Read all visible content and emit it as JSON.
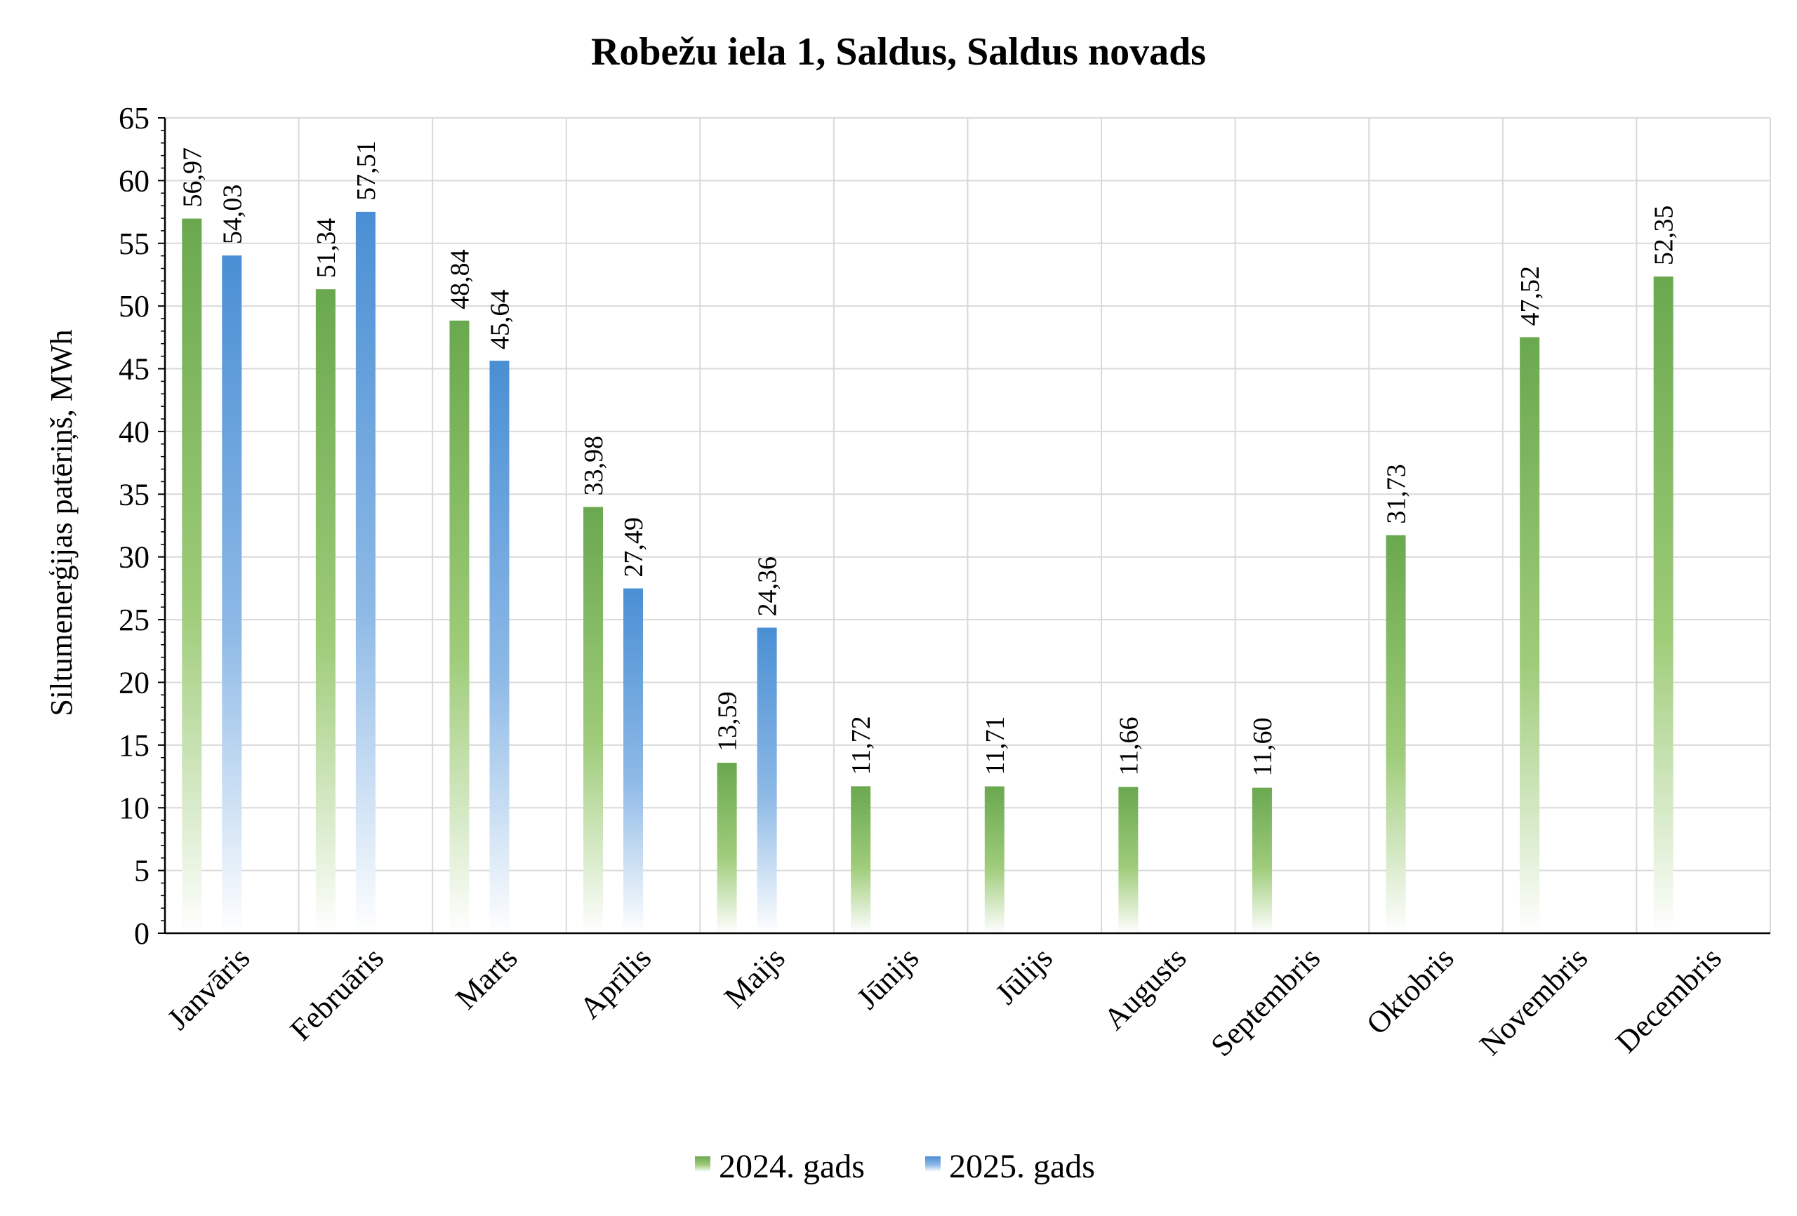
{
  "chart_data": {
    "type": "bar",
    "title": "Robežu iela 1, Saldus, Saldus novads",
    "ylabel": "Siltumenerģijas patēriņš, MWh",
    "xlabel": "",
    "ylim": [
      0,
      65
    ],
    "ytick_step": 5,
    "grid": true,
    "legend_position": "bottom-center",
    "categories": [
      "Janvāris",
      "Februāris",
      "Marts",
      "Aprīlis",
      "Maijs",
      "Jūnijs",
      "Jūlijs",
      "Augusts",
      "Septembris",
      "Oktobris",
      "Novembris",
      "Decembris"
    ],
    "series": [
      {
        "name": "2024. gads",
        "color": "#6aa84f",
        "values": [
          56.97,
          51.34,
          48.84,
          33.98,
          13.59,
          11.72,
          11.71,
          11.66,
          11.6,
          31.73,
          47.52,
          52.35
        ],
        "labels": [
          "56,97",
          "51,34",
          "48,84",
          "33,98",
          "13,59",
          "11,72",
          "11,71",
          "11,66",
          "11,60",
          "31,73",
          "47,52",
          "52,35"
        ]
      },
      {
        "name": "2025. gads",
        "color": "#4a8fd4",
        "values": [
          54.03,
          57.51,
          45.64,
          27.49,
          24.36,
          null,
          null,
          null,
          null,
          null,
          null,
          null
        ],
        "labels": [
          "54,03",
          "57,51",
          "45,64",
          "27,49",
          "24,36",
          null,
          null,
          null,
          null,
          null,
          null,
          null
        ]
      }
    ]
  }
}
